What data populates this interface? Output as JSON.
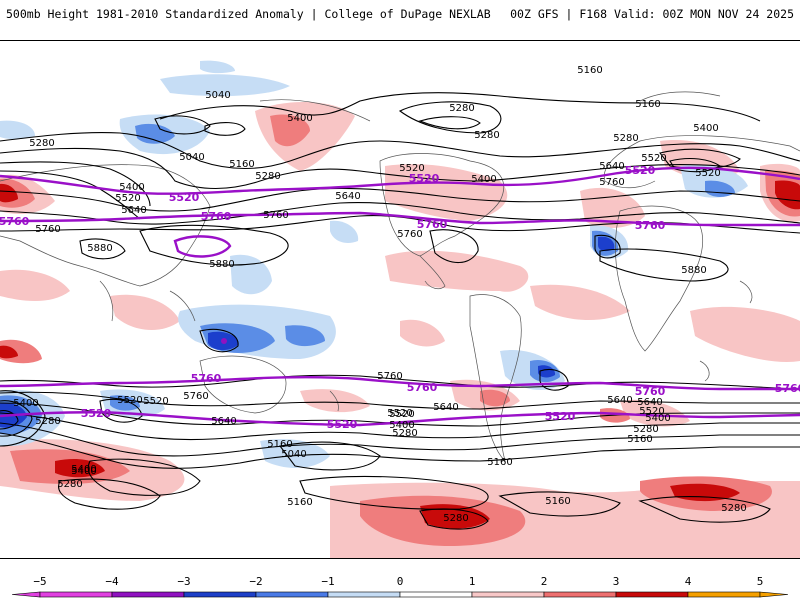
{
  "header": {
    "title_left": "500mb Height 1981-2010 Standardized Anomaly | College of DuPage NEXLAB",
    "title_right": "00Z GFS | F168 Valid: 00Z MON NOV 24 2025"
  },
  "colors": {
    "contour": "#000000",
    "highlight_contour": "#9a10c8",
    "neg_light": "#c6ddf5",
    "neg_mid": "#5b8de6",
    "neg_dark": "#1c3fcc",
    "pos_light": "#f8c5c5",
    "pos_mid": "#ef7d7d",
    "pos_dark": "#c80a0a"
  },
  "map": {
    "contour_labels": [
      "5160",
      "5160",
      "5040",
      "5280",
      "5400",
      "5280",
      "5280",
      "5400",
      "5520",
      "5280",
      "5040",
      "5160",
      "5280",
      "5520",
      "5400",
      "5640",
      "5520",
      "5640",
      "5760",
      "5760",
      "5400",
      "5520",
      "5640",
      "5760",
      "5880",
      "5880",
      "5880",
      "5760",
      "5760",
      "5760",
      "5640",
      "5520",
      "5400",
      "5280",
      "5520",
      "5640",
      "5160",
      "5040",
      "5160",
      "5280",
      "5160",
      "5280",
      "5160",
      "5400",
      "5640",
      "5520",
      "5640",
      "5520",
      "5400",
      "5280",
      "5160",
      "5400",
      "5280",
      "5520",
      "5400",
      "5280"
    ],
    "highlight_labels": [
      "5520",
      "5760",
      "5520",
      "5760",
      "5760",
      "5520",
      "5760",
      "5760",
      "5760",
      "5520",
      "5520",
      "5760",
      "5520",
      "5760"
    ]
  },
  "colorbar": {
    "ticks": [
      "−5",
      "−4",
      "−3",
      "−2",
      "−1",
      "0",
      "1",
      "2",
      "3",
      "4",
      "5"
    ],
    "colors": [
      "#e040e0",
      "#9012c0",
      "#1e40c8",
      "#4a7ae6",
      "#c5dcf4",
      "#ffffff",
      "#ffffff",
      "#f8c8c8",
      "#ee7070",
      "#c80a0a",
      "#f5a000"
    ]
  }
}
